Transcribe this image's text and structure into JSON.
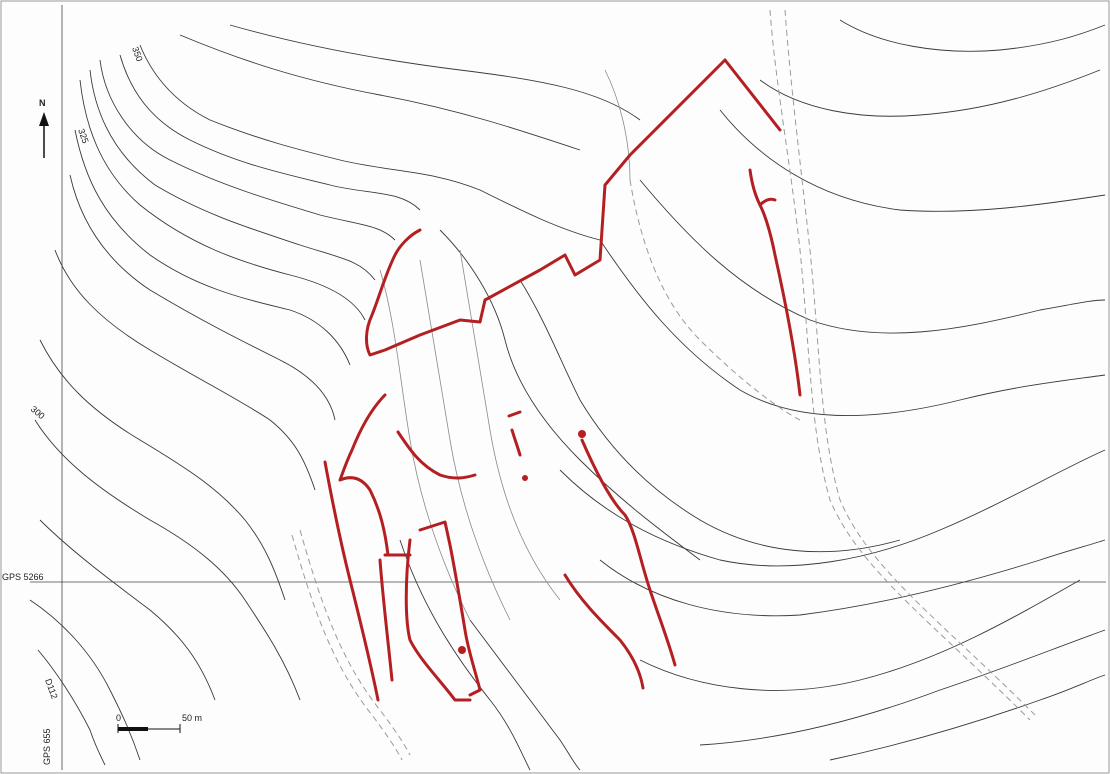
{
  "map": {
    "contour_labels": [
      "350",
      "325",
      "300"
    ],
    "grid_labels": {
      "horizontal": "GPS 5266",
      "vertical": "GPS 655"
    },
    "road_label": "D112",
    "north_label": "N",
    "scale": {
      "start_label": "0",
      "end_label": "50 m"
    },
    "colors": {
      "walls": "#b41f22",
      "contours": "#3a3a3a",
      "paths": "#9a9a9a"
    }
  }
}
